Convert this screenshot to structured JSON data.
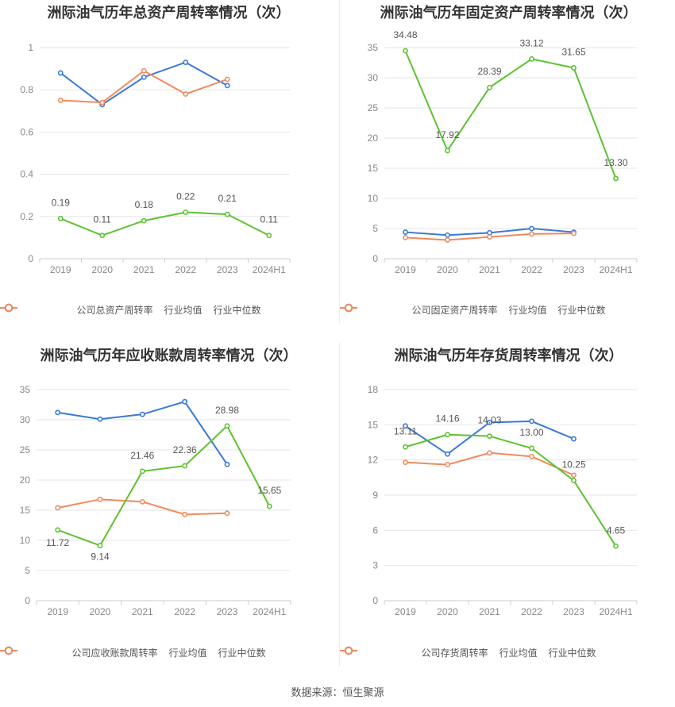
{
  "colors": {
    "company": "#5dc22f",
    "avg": "#3b78d8",
    "median": "#f08a5d",
    "grid": "#e6e6e6",
    "text": "#888888",
    "label": "#555555"
  },
  "chart_data": [
    {
      "type": "line",
      "title": "洲际油气历年总资产周转率情况（次）",
      "categories": [
        "2019",
        "2020",
        "2021",
        "2022",
        "2023",
        "2024H1"
      ],
      "yticks": [
        "0",
        "0.2",
        "0.4",
        "0.6",
        "0.8",
        "1"
      ],
      "ylim": [
        0,
        1
      ],
      "series": [
        {
          "name": "公司总资产周转率",
          "role": "company",
          "values": [
            0.19,
            0.11,
            0.18,
            0.22,
            0.21,
            0.11
          ],
          "labels": [
            "0.19",
            "0.11",
            "0.18",
            "0.22",
            "0.21",
            "0.11"
          ]
        },
        {
          "name": "行业均值",
          "role": "avg",
          "values": [
            0.88,
            0.73,
            0.86,
            0.93,
            0.82,
            null
          ]
        },
        {
          "name": "行业中位数",
          "role": "median",
          "values": [
            0.75,
            0.74,
            0.89,
            0.78,
            0.85,
            null
          ]
        }
      ],
      "legend": "bottom",
      "grid": true
    },
    {
      "type": "line",
      "title": "洲际油气历年固定资产周转率情况（次）",
      "categories": [
        "2019",
        "2020",
        "2021",
        "2022",
        "2023",
        "2024H1"
      ],
      "yticks": [
        "0",
        "5",
        "10",
        "15",
        "20",
        "25",
        "30",
        "35"
      ],
      "ylim": [
        0,
        35
      ],
      "series": [
        {
          "name": "公司固定资产周转率",
          "role": "company",
          "values": [
            34.48,
            17.92,
            28.39,
            33.12,
            31.65,
            13.3
          ],
          "labels": [
            "34.48",
            "17.92",
            "28.39",
            "33.12",
            "31.65",
            "13.30"
          ]
        },
        {
          "name": "行业均值",
          "role": "avg",
          "values": [
            4.4,
            3.9,
            4.3,
            5.0,
            4.4,
            null
          ]
        },
        {
          "name": "行业中位数",
          "role": "median",
          "values": [
            3.5,
            3.1,
            3.6,
            4.1,
            4.2,
            null
          ]
        }
      ],
      "legend": "bottom",
      "grid": true
    },
    {
      "type": "line",
      "title": "洲际油气历年应收账款周转率情况（次）",
      "categories": [
        "2019",
        "2020",
        "2021",
        "2022",
        "2023",
        "2024H1"
      ],
      "yticks": [
        "0",
        "5",
        "10",
        "15",
        "20",
        "25",
        "30",
        "35"
      ],
      "ylim": [
        0,
        35
      ],
      "series": [
        {
          "name": "公司应收账款周转率",
          "role": "company",
          "values": [
            11.72,
            9.14,
            21.46,
            22.36,
            28.98,
            15.65
          ],
          "labels": [
            "11.72",
            "9.14",
            "21.46",
            "22.36",
            "28.98",
            "15.65"
          ]
        },
        {
          "name": "行业均值",
          "role": "avg",
          "values": [
            31.2,
            30.1,
            30.9,
            33.0,
            22.6,
            null
          ]
        },
        {
          "name": "行业中位数",
          "role": "median",
          "values": [
            15.4,
            16.8,
            16.4,
            14.3,
            14.5,
            null
          ]
        }
      ],
      "legend": "bottom",
      "grid": true
    },
    {
      "type": "line",
      "title": "洲际油气历年存货周转率情况（次）",
      "categories": [
        "2019",
        "2020",
        "2021",
        "2022",
        "2023",
        "2024H1"
      ],
      "yticks": [
        "0",
        "3",
        "6",
        "9",
        "12",
        "15",
        "18"
      ],
      "ylim": [
        0,
        18
      ],
      "series": [
        {
          "name": "公司存货周转率",
          "role": "company",
          "values": [
            13.11,
            14.16,
            14.03,
            13.0,
            10.25,
            4.65
          ],
          "labels": [
            "13.11",
            "14.16",
            "14.03",
            "13.00",
            "10.25",
            "4.65"
          ]
        },
        {
          "name": "行业均值",
          "role": "avg",
          "values": [
            14.9,
            12.5,
            15.2,
            15.3,
            13.8,
            null
          ]
        },
        {
          "name": "行业中位数",
          "role": "median",
          "values": [
            11.8,
            11.6,
            12.6,
            12.3,
            10.7,
            null
          ]
        }
      ],
      "legend": "bottom",
      "grid": true
    }
  ],
  "source": "数据来源：恒生聚源"
}
